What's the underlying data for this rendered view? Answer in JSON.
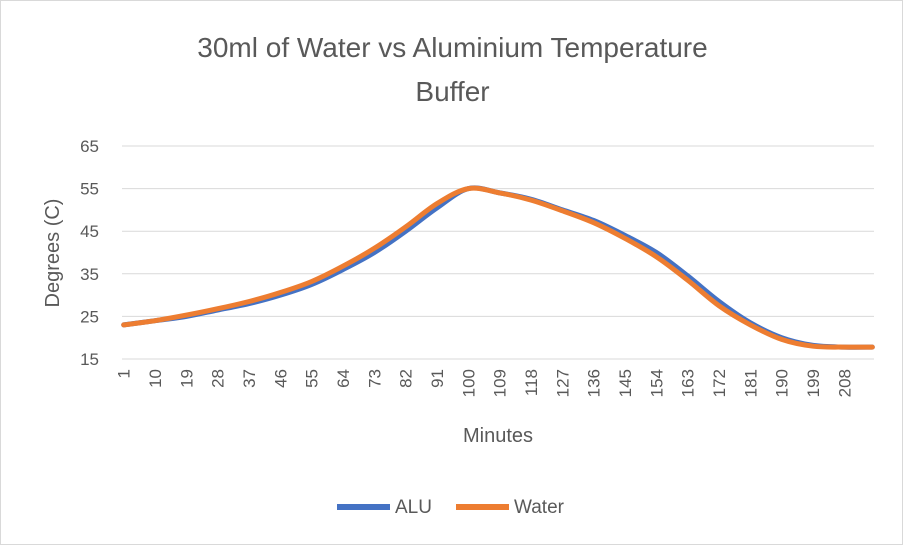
{
  "chart_data": {
    "type": "line",
    "title_line1": "30ml of Water vs Aluminium Temperature",
    "title_line2": "Buffer",
    "xlabel": "Minutes",
    "ylabel": "Degrees (C)",
    "ylim": [
      15,
      65
    ],
    "yticks": [
      "15",
      "25",
      "35",
      "45",
      "55",
      "65"
    ],
    "x_categories_count": 216,
    "xticks": [
      "1",
      "10",
      "19",
      "28",
      "37",
      "46",
      "55",
      "64",
      "73",
      "82",
      "91",
      "100",
      "109",
      "118",
      "127",
      "136",
      "145",
      "154",
      "163",
      "172",
      "181",
      "190",
      "199",
      "208"
    ],
    "grid": true,
    "legend_position": "bottom",
    "series": [
      {
        "name": "ALU",
        "color": "#4472c4",
        "points": [
          [
            1,
            23
          ],
          [
            10,
            24
          ],
          [
            19,
            25
          ],
          [
            28,
            26.5
          ],
          [
            37,
            28
          ],
          [
            46,
            30
          ],
          [
            55,
            32.5
          ],
          [
            64,
            36
          ],
          [
            73,
            40
          ],
          [
            82,
            45
          ],
          [
            91,
            50.5
          ],
          [
            100,
            55
          ],
          [
            109,
            54
          ],
          [
            118,
            52.5
          ],
          [
            127,
            50
          ],
          [
            136,
            47.5
          ],
          [
            145,
            44
          ],
          [
            154,
            40
          ],
          [
            163,
            34.5
          ],
          [
            172,
            28.5
          ],
          [
            181,
            23.5
          ],
          [
            190,
            20
          ],
          [
            199,
            18.2
          ],
          [
            208,
            17.8
          ],
          [
            216,
            17.8
          ]
        ]
      },
      {
        "name": "Water",
        "color": "#ed7d31",
        "points": [
          [
            1,
            23
          ],
          [
            10,
            24
          ],
          [
            19,
            25.3
          ],
          [
            28,
            26.8
          ],
          [
            37,
            28.5
          ],
          [
            46,
            30.6
          ],
          [
            55,
            33.2
          ],
          [
            64,
            36.8
          ],
          [
            73,
            41
          ],
          [
            82,
            46
          ],
          [
            91,
            51.5
          ],
          [
            100,
            55
          ],
          [
            109,
            54
          ],
          [
            118,
            52.3
          ],
          [
            127,
            49.8
          ],
          [
            136,
            47
          ],
          [
            145,
            43.3
          ],
          [
            154,
            39
          ],
          [
            163,
            33.5
          ],
          [
            172,
            27.5
          ],
          [
            181,
            23
          ],
          [
            190,
            19.6
          ],
          [
            199,
            18
          ],
          [
            208,
            17.8
          ],
          [
            216,
            17.8
          ]
        ]
      }
    ]
  }
}
